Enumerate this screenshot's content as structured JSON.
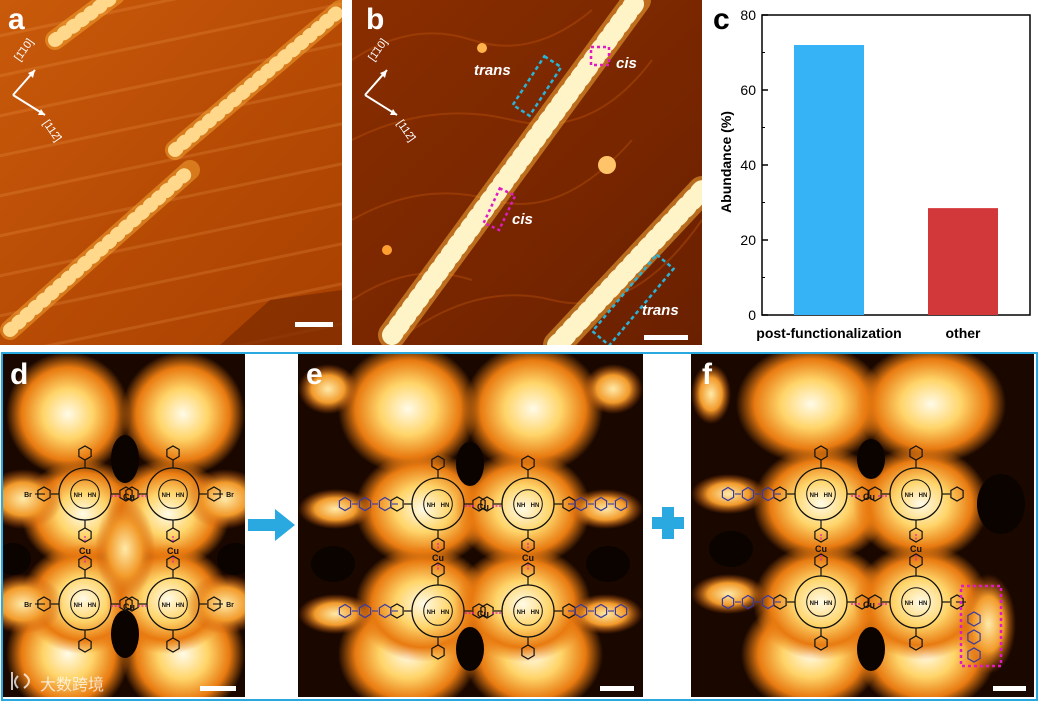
{
  "panels": {
    "a": {
      "label": "a",
      "dir1": "[1̄10]",
      "dir2": "[112̄]"
    },
    "b": {
      "label": "b",
      "dir1": "[1̄10]",
      "dir2": "[112̄]",
      "annotations": {
        "trans_top": "trans",
        "cis_top": "cis",
        "cis_mid": "cis",
        "trans_bottom": "trans"
      }
    },
    "c": {
      "label": "c"
    },
    "d": {
      "label": "d"
    },
    "e": {
      "label": "e"
    },
    "f": {
      "label": "f"
    }
  },
  "molecule_labels": {
    "metal": "Cu",
    "halogen": "Br",
    "nh": "NH",
    "hn": "HN",
    "n": "N"
  },
  "colors": {
    "frame": "#29a9e0",
    "bar_post": "#36b3f7",
    "bar_other": "#d2383a",
    "arrow": "#29a9e0",
    "plus": "#29a9e0"
  },
  "watermark": {
    "text": "大数跨境"
  },
  "chart_data": {
    "type": "bar",
    "categories": [
      "post-functionalization",
      "other"
    ],
    "values": [
      72,
      28.5
    ],
    "ylabel": "Abundance (%)",
    "xlabel": "",
    "ylim": [
      0,
      80
    ],
    "yticks": [
      0,
      20,
      40,
      60,
      80
    ]
  }
}
